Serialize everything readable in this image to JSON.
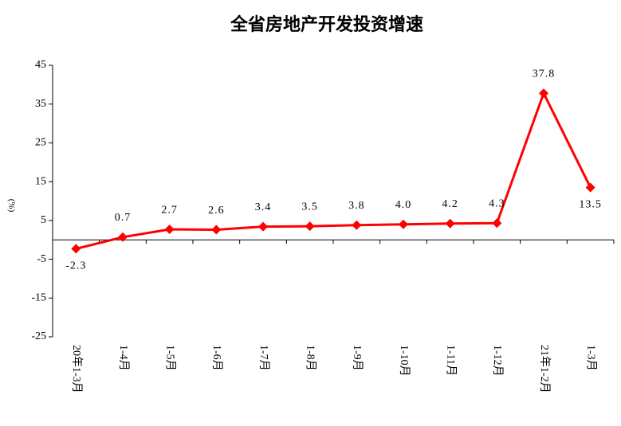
{
  "chart_data": {
    "type": "line",
    "title": "全省房地产开发投资增速",
    "y_label": "(%)",
    "categories": [
      "20年1-3月",
      "1-4月",
      "1-5月",
      "1-6月",
      "1-7月",
      "1-8月",
      "1-9月",
      "1-10月",
      "1-11月",
      "1-12月",
      "21年1-2月",
      "1-3月"
    ],
    "series": [
      {
        "name": "增速",
        "color": "#ff0000",
        "values": [
          -2.3,
          0.7,
          2.7,
          2.6,
          3.4,
          3.5,
          3.8,
          4.0,
          4.2,
          4.3,
          37.8,
          13.5
        ],
        "value_labels": [
          "-2.3",
          "0.7",
          "2.7",
          "2.6",
          "3.4",
          "3.5",
          "3.8",
          "4.0",
          "4.2",
          "4.3",
          "37.8",
          "13.5"
        ]
      }
    ],
    "ylim": [
      -25,
      45
    ],
    "yticks": [
      -25,
      -15,
      -5,
      5,
      15,
      25,
      35,
      45
    ],
    "grid": false
  }
}
